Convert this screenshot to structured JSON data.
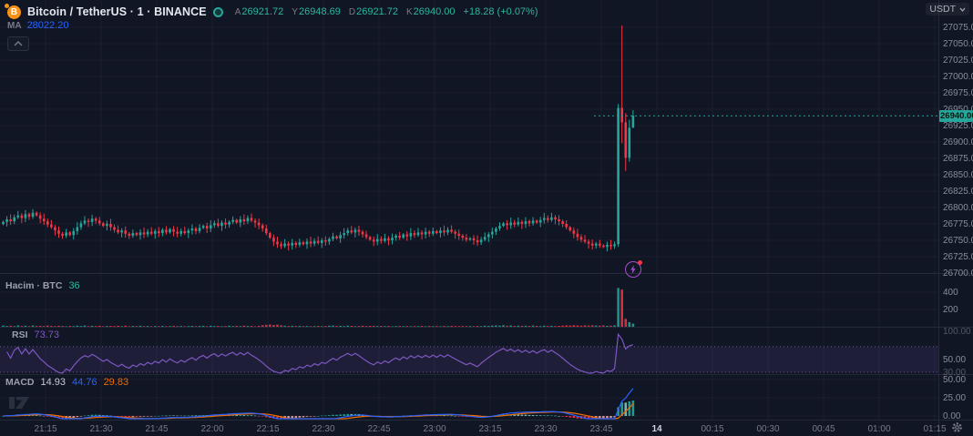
{
  "header": {
    "symbol_title": "Bitcoin / TetherUS · 1 · BINANCE",
    "ohlc": {
      "o_label": "A",
      "o": "26921.72",
      "h_label": "Y",
      "h": "26948.69",
      "l_label": "D",
      "l": "26921.72",
      "c_label": "K",
      "c": "26940.00",
      "change": "+18.28 (+0.07%)"
    },
    "ma": {
      "label": "MA",
      "value": "28022.20"
    }
  },
  "panes": {
    "volume": {
      "label": "Hacim · BTC",
      "value": "36"
    },
    "rsi": {
      "label": "RSI",
      "value": "73.73"
    },
    "macd": {
      "label": "MACD",
      "hist": "14.93",
      "macd": "44.76",
      "signal": "29.83"
    }
  },
  "price_axis": {
    "currency": "USDT",
    "current_price": "26940.00",
    "labels": [
      "27075.00",
      "27050.00",
      "27025.00",
      "27000.00",
      "26975.00",
      "26950.00",
      "26925.00",
      "26900.00",
      "26875.00",
      "26850.00",
      "26825.00",
      "26800.00",
      "26775.00",
      "26750.00",
      "26725.00",
      "26700.00"
    ],
    "volume_labels": [
      "400",
      "200"
    ],
    "rsi_labels": [
      "100.00",
      "50.00",
      "30.00"
    ],
    "macd_labels": [
      "50.00",
      "25.00",
      "0.00"
    ]
  },
  "time_axis": {
    "labels": [
      "21:15",
      "21:30",
      "21:45",
      "22:00",
      "22:15",
      "22:30",
      "22:45",
      "23:00",
      "23:15",
      "23:30",
      "23:45",
      "14",
      "00:15",
      "00:30",
      "00:45",
      "01:00",
      "01:15"
    ],
    "day_marker_index": 11
  },
  "colors": {
    "background": "#111624",
    "up": "#26a69a",
    "down": "#f23645",
    "up_bright": "#2cb59f",
    "ma_blue": "#2962ff",
    "rsi_purple": "#7e57c2",
    "macd_blue": "#2962ff",
    "signal_orange": "#ef6c00",
    "axis_text": "#868d9b",
    "muted_text": "#787b86",
    "grid": "rgba(190,200,220,0.05)",
    "divider": "#232a38",
    "current_price_bg": "#26a69a",
    "btc_orange": "#f7931a",
    "badge_purple": "#a34fc9"
  },
  "chart_data": {
    "type": "candlestick",
    "symbol": "Bitcoin / TetherUS",
    "exchange": "BINANCE",
    "interval": "1",
    "legend_position": "top-left",
    "grid": true,
    "price_ylim_visible": [
      26700,
      27117
    ],
    "current_price": 26940.0,
    "current_candle": {
      "open": 26921.72,
      "high": 26948.69,
      "low": 26921.72,
      "close": 26940.0,
      "change": 18.28,
      "change_pct": 0.07
    },
    "candles": {
      "first_open": 26775,
      "closes": [
        26778,
        26782,
        26779,
        26785,
        26788,
        26784,
        26790,
        26786,
        26792,
        26788,
        26783,
        26779,
        26774,
        26770,
        26765,
        26760,
        26757,
        26762,
        26758,
        26764,
        26770,
        26776,
        26780,
        26778,
        26783,
        26780,
        26776,
        26772,
        26775,
        26770,
        26766,
        26762,
        26765,
        26760,
        26757,
        26761,
        26758,
        26762,
        26759,
        26763,
        26760,
        26764,
        26761,
        26766,
        26762,
        26767,
        26763,
        26760,
        26764,
        26761,
        26765,
        26768,
        26764,
        26769,
        26772,
        26768,
        26773,
        26776,
        26772,
        26777,
        26774,
        26778,
        26781,
        26777,
        26782,
        26779,
        26784,
        26780,
        26777,
        26773,
        26768,
        26761,
        26754,
        26748,
        26744,
        26741,
        26745,
        26742,
        26746,
        26743,
        26747,
        26744,
        26748,
        26745,
        26749,
        26746,
        26750,
        26748,
        26752,
        26756,
        26753,
        26758,
        26761,
        26765,
        26762,
        26766,
        26763,
        26759,
        26755,
        26751,
        26748,
        26752,
        26749,
        26753,
        26750,
        26754,
        26757,
        26754,
        26759,
        26756,
        26761,
        26758,
        26762,
        26759,
        26763,
        26760,
        26764,
        26761,
        26765,
        26762,
        26766,
        26763,
        26760,
        26757,
        26754,
        26751,
        26753,
        26750,
        26747,
        26751,
        26755,
        26759,
        26763,
        26768,
        26772,
        26776,
        26773,
        26777,
        26774,
        26778,
        26775,
        26779,
        26776,
        26780,
        26777,
        26781,
        26784,
        26781,
        26785,
        26782,
        26779,
        26775,
        26770,
        26765,
        26760,
        26755,
        26751,
        26748,
        26745,
        26742,
        26745,
        26742,
        26740,
        26743,
        26741,
        26744
      ],
      "tail_ohlc": [
        [
          26744,
          26958,
          26740,
          26952
        ],
        [
          26952,
          27078,
          26898,
          26930
        ],
        [
          26930,
          26944,
          26856,
          26876
        ],
        [
          26876,
          26934,
          26870,
          26921.72
        ],
        [
          26921.72,
          26948.69,
          26921.72,
          26940.0
        ]
      ]
    },
    "volumes": [
      14,
      9,
      12,
      7,
      16,
      8,
      13,
      6,
      15,
      9,
      11,
      8,
      14,
      10,
      7,
      12,
      9,
      6,
      10,
      8,
      13,
      9,
      15,
      7,
      11,
      8,
      12,
      6,
      9,
      10,
      8,
      11,
      7,
      13,
      6,
      10,
      8,
      12,
      7,
      9,
      6,
      9,
      7,
      10,
      6,
      8,
      11,
      7,
      9,
      6,
      8,
      10,
      7,
      9,
      11,
      6,
      12,
      8,
      10,
      7,
      9,
      12,
      8,
      11,
      7,
      13,
      9,
      10,
      6,
      11,
      18,
      22,
      26,
      20,
      24,
      17,
      12,
      9,
      11,
      8,
      10,
      7,
      9,
      6,
      8,
      10,
      7,
      9,
      12,
      14,
      9,
      11,
      8,
      13,
      10,
      7,
      9,
      12,
      8,
      10,
      11,
      8,
      10,
      7,
      9,
      6,
      8,
      10,
      7,
      9,
      6,
      8,
      7,
      10,
      6,
      9,
      7,
      8,
      6,
      9,
      7,
      10,
      8,
      6,
      9,
      7,
      8,
      6,
      10,
      7,
      12,
      10,
      14,
      16,
      13,
      18,
      11,
      15,
      9,
      13,
      10,
      12,
      9,
      14,
      10,
      8,
      13,
      9,
      11,
      8,
      10,
      13,
      16,
      14,
      18,
      15,
      12,
      16,
      13,
      17,
      14,
      12,
      15,
      11,
      13,
      16,
      448,
      430,
      92,
      54,
      36
    ],
    "indicators": {
      "ma": {
        "label": "MA",
        "value": 28022.2
      },
      "volume": {
        "label": "Hacim · BTC",
        "current": 36
      },
      "rsi": {
        "label": "RSI",
        "current": 73.73,
        "upper_band": 70,
        "lower_band": 30,
        "scale": [
          0,
          100
        ]
      },
      "macd": {
        "label": "MACD",
        "histogram": 14.93,
        "macd_line": 44.76,
        "signal_line": 29.83
      }
    }
  }
}
